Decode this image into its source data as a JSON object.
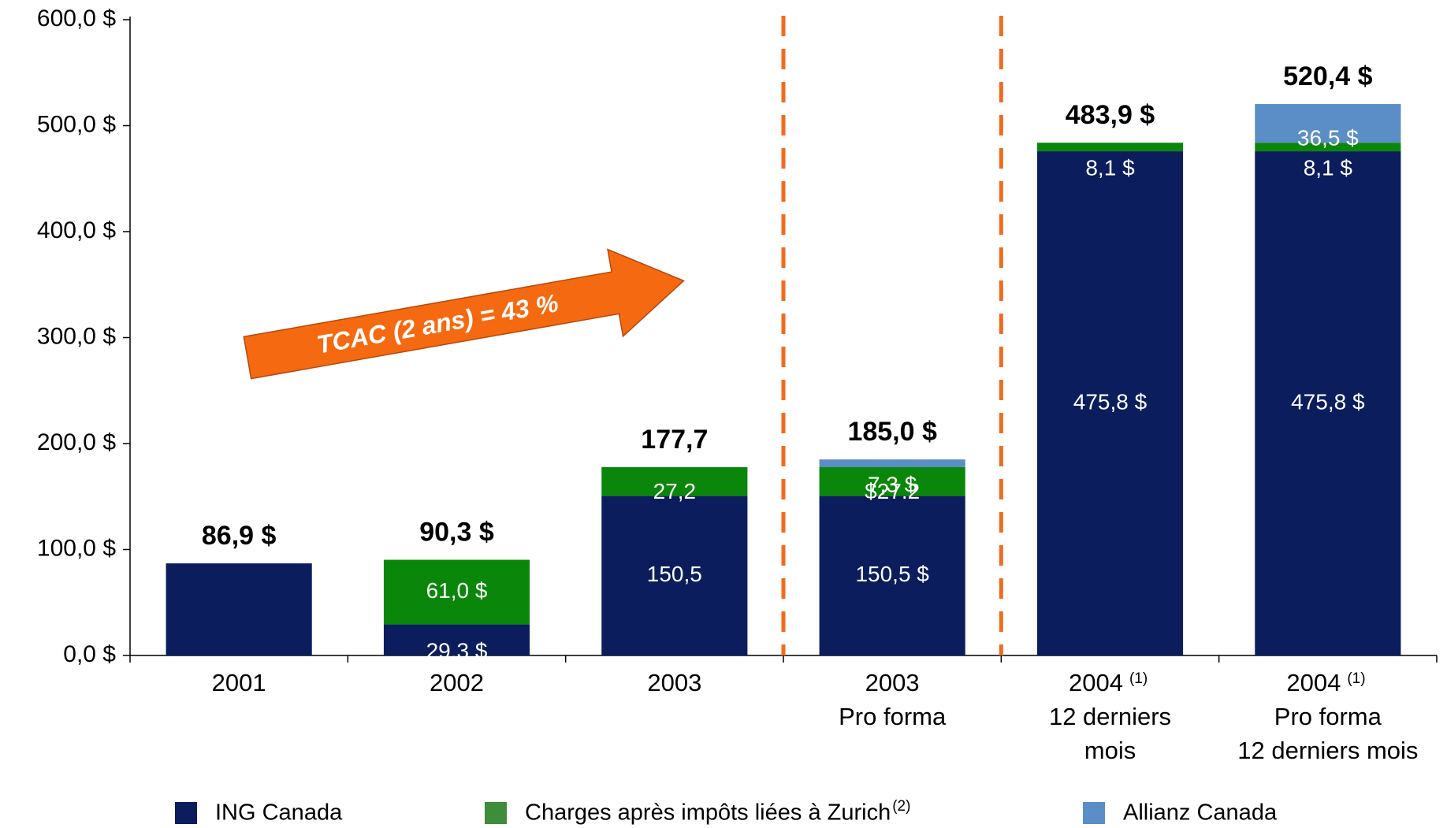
{
  "chart_data": {
    "type": "stacked_bar",
    "categories": [
      [
        "2001"
      ],
      [
        "2002"
      ],
      [
        "2003"
      ],
      [
        "2003",
        "Pro forma"
      ],
      [
        "2004",
        "12 derniers",
        "mois"
      ],
      [
        "2004",
        "Pro forma",
        "12 derniers mois"
      ]
    ],
    "category_notes": [
      null,
      null,
      null,
      null,
      "(1)",
      "(1)"
    ],
    "series": [
      {
        "name": "ING Canada",
        "color": "#0b1d5c",
        "legend_color": "#0b1d5c",
        "values": [
          86.9,
          29.3,
          150.5,
          150.5,
          475.8,
          475.8
        ],
        "value_labels": [
          null,
          "29,3 $",
          "150,5",
          "150,5 $",
          "475,8 $",
          "475,8 $"
        ]
      },
      {
        "name": "Charges après impôts liées à Zurich",
        "name_note": "(2)",
        "color": "#0a870a",
        "legend_color": "#3f8c3a",
        "values": [
          null,
          61.0,
          27.2,
          27.2,
          8.1,
          8.1
        ],
        "value_labels": [
          null,
          "61,0 $",
          "27,2",
          "$27.2",
          "8,1 $",
          "8,1 $"
        ]
      },
      {
        "name": "Allianz Canada",
        "color": "#5b8ec6",
        "legend_color": "#5b8ec6",
        "values": [
          null,
          null,
          null,
          7.3,
          null,
          36.5
        ],
        "value_labels": [
          null,
          null,
          null,
          "7,3 $",
          null,
          "36,5 $"
        ]
      }
    ],
    "totals": [
      86.9,
      90.3,
      177.7,
      185.0,
      483.9,
      520.4
    ],
    "total_labels": [
      "86,9 $",
      "90,3 $",
      "177,7",
      "185,0 $",
      "483,9 $",
      "520,4 $"
    ],
    "annotation": "TCAC (2 ans) = 43 %",
    "ylim": [
      0,
      600
    ],
    "yticks": [
      {
        "value": 0,
        "label": "0,0 $"
      },
      {
        "value": 100,
        "label": "100,0 $"
      },
      {
        "value": 200,
        "label": "200,0 $"
      },
      {
        "value": 300,
        "label": "300,0 $"
      },
      {
        "value": 400,
        "label": "400,0 $"
      },
      {
        "value": 500,
        "label": "500,0 $"
      },
      {
        "value": 600,
        "label": "600,0 $"
      }
    ]
  }
}
